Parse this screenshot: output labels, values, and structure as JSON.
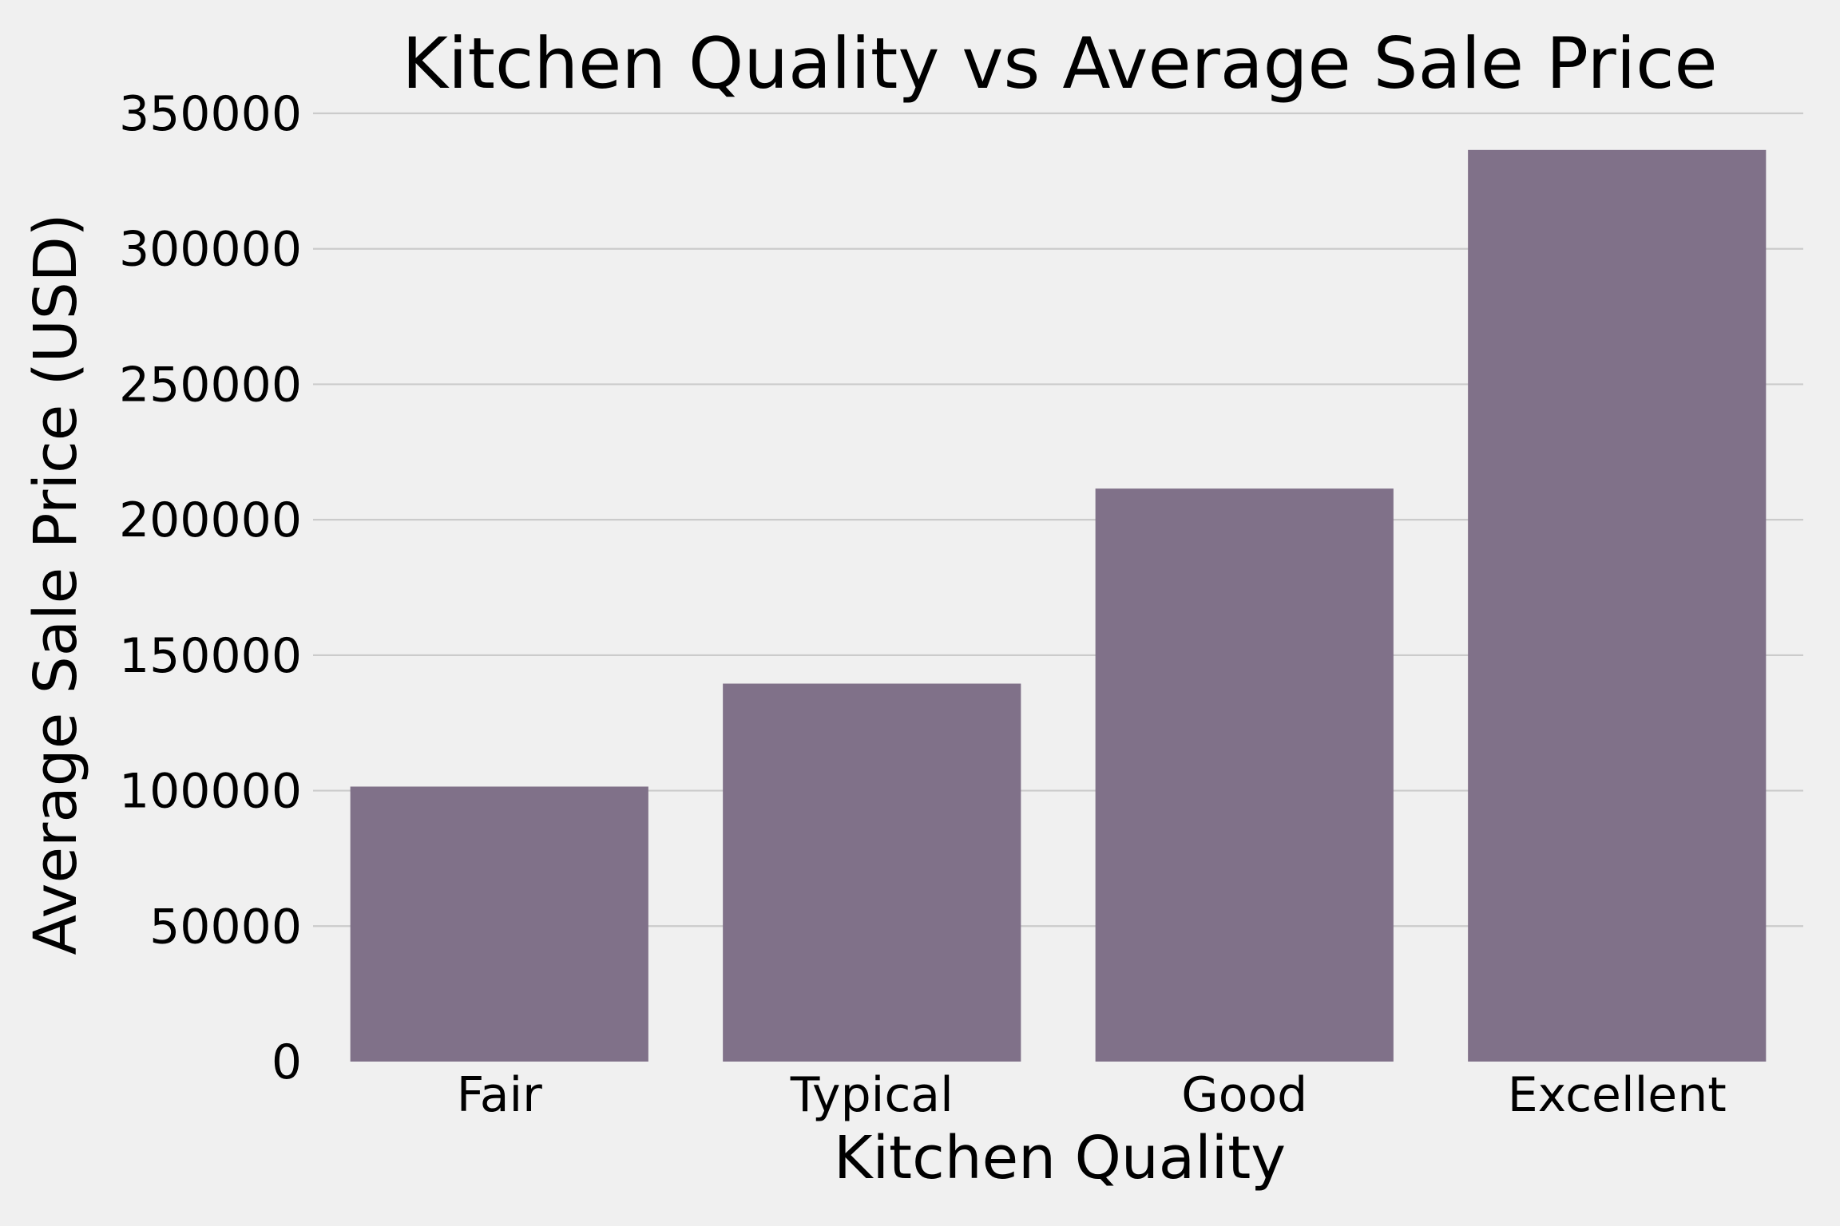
{
  "chart_data": {
    "type": "bar",
    "title": "Kitchen Quality vs Average Sale Price",
    "xlabel": "Kitchen Quality",
    "ylabel": "Average Sale Price (USD)",
    "categories": [
      "Fair",
      "Typical",
      "Good",
      "Excellent"
    ],
    "values": [
      101500,
      139500,
      211500,
      336500
    ],
    "yticks": [
      0,
      50000,
      100000,
      150000,
      200000,
      250000,
      300000,
      350000
    ],
    "ytick_labels": [
      "0",
      "50000",
      "100000",
      "150000",
      "200000",
      "250000",
      "300000",
      "350000"
    ],
    "ylim": [
      0,
      350000
    ],
    "grid": "horizontal",
    "legend": "none",
    "bar_color": "#807189",
    "background_color": "#f0f0f0"
  }
}
